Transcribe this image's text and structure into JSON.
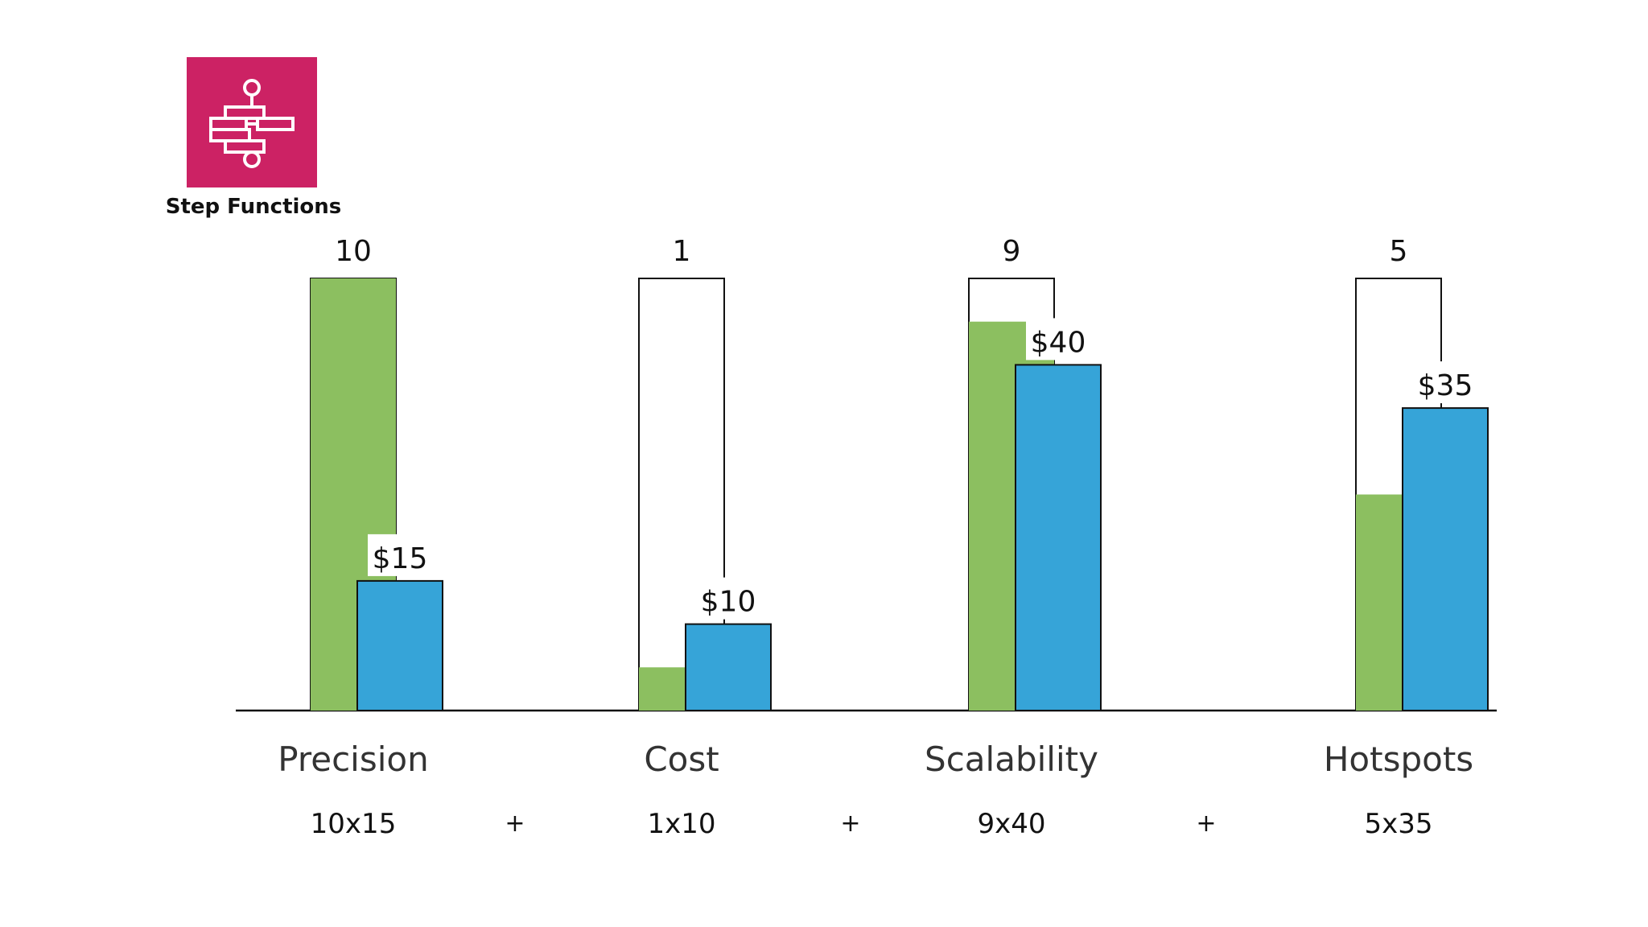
{
  "service": {
    "name": "Step Functions",
    "icon": "step-functions-icon",
    "icon_bg": "#cc2264"
  },
  "colors": {
    "score": "#8cbf60",
    "price": "#36a4d8",
    "outline": "#111111"
  },
  "chart_data": {
    "type": "bar",
    "categories": [
      "Precision",
      "Cost",
      "Scalability",
      "Hotspots"
    ],
    "series": [
      {
        "values": [
          10,
          1,
          9,
          5
        ]
      },
      {
        "values": [
          15,
          10,
          40,
          35
        ]
      }
    ],
    "score_max": 10,
    "price_max": 50,
    "score_labels": [
      "10",
      "1",
      "9",
      "5"
    ],
    "price_labels": [
      "$15",
      "$10",
      "$40",
      "$35"
    ],
    "formulas": [
      "10x15",
      "1x10",
      "9x40",
      "5x35"
    ],
    "operator": "+"
  }
}
